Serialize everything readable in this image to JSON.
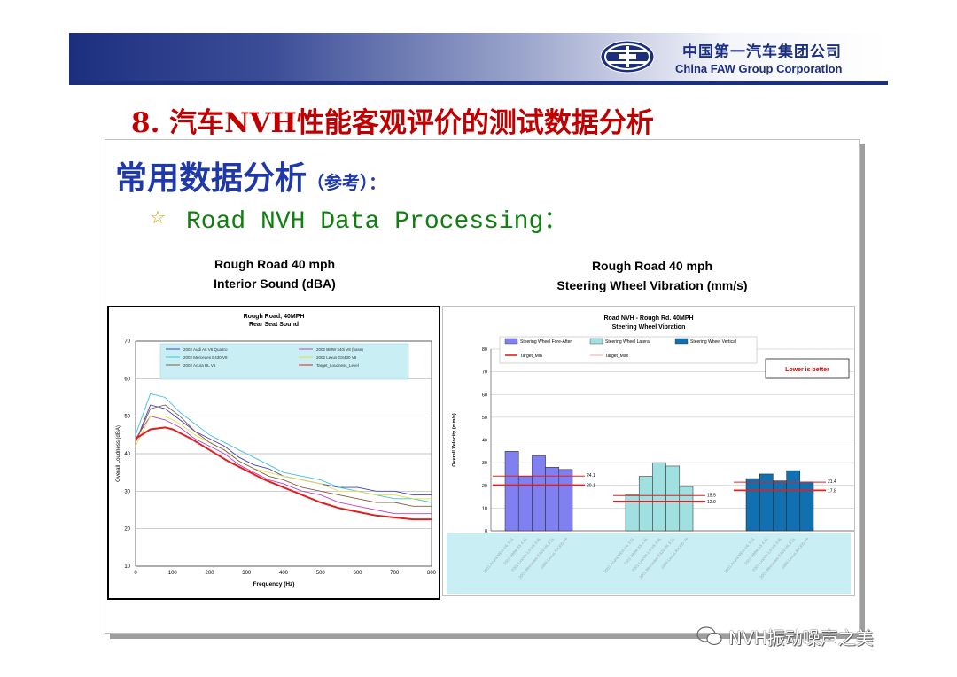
{
  "header": {
    "company_cn": "中国第一汽车集团公司",
    "company_en": "China FAW Group Corporation",
    "banner_color": "#1c2f7f"
  },
  "slide": {
    "title": "8. 汽车NVH性能客观评价的测试数据分析",
    "subtitle": "常用数据分析",
    "subtitle_note": "（参考）：",
    "bullet_icon": "star-icon",
    "bullet": "Road NVH Data Processing："
  },
  "chart_titles": {
    "left_line1": "Rough Road 40 mph",
    "left_line2": "Interior Sound (dBA)",
    "right_line1": "Rough Road 40 mph",
    "right_line2": "Steering Wheel Vibration (mm/s)"
  },
  "watermark": "NVH振动噪声之美",
  "chart_data": [
    {
      "type": "line",
      "title": "Rough Road, 40MPH",
      "subtitle": "Rear Seat Sound",
      "xlabel": "Frequency (Hz)",
      "ylabel": "Overall Loudness (dBA)",
      "xlim": [
        0,
        800
      ],
      "ylim": [
        10,
        70
      ],
      "x_ticks": [
        0,
        100,
        200,
        300,
        400,
        500,
        600,
        700,
        800
      ],
      "y_ticks": [
        10,
        20,
        30,
        40,
        50,
        60,
        70
      ],
      "grid": true,
      "legend_position": "top",
      "series": [
        {
          "name": "2002 Audi A6 V6 Quattro",
          "color": "#4040c0",
          "x": [
            0,
            40,
            80,
            120,
            160,
            200,
            240,
            280,
            320,
            360,
            400,
            450,
            500,
            550,
            600,
            650,
            700,
            750,
            800
          ],
          "y": [
            43,
            53,
            52,
            49,
            46,
            44,
            42,
            39,
            37,
            36,
            34,
            33,
            32,
            31,
            31,
            30,
            30,
            29,
            29
          ]
        },
        {
          "name": "2002 BMW 540i V8 (base)",
          "color": "#c040c0",
          "x": [
            0,
            40,
            80,
            120,
            160,
            200,
            240,
            280,
            320,
            360,
            400,
            450,
            500,
            550,
            600,
            650,
            700,
            750,
            800
          ],
          "y": [
            44,
            50,
            49,
            47,
            44,
            42,
            40,
            37,
            35,
            33,
            32,
            30,
            29,
            27,
            26,
            25,
            24,
            24,
            24
          ]
        },
        {
          "name": "2002 Mercedes E430 V8",
          "color": "#40c0e0",
          "x": [
            0,
            40,
            80,
            120,
            160,
            200,
            240,
            280,
            320,
            360,
            400,
            450,
            500,
            550,
            600,
            650,
            700,
            750,
            800
          ],
          "y": [
            45,
            56,
            55,
            51,
            48,
            45,
            43,
            41,
            39,
            37,
            35,
            34,
            33,
            31,
            30,
            29,
            28,
            28,
            27
          ]
        },
        {
          "name": "2002 Lexus GS430 V8",
          "color": "#e0e040",
          "x": [
            0,
            40,
            80,
            120,
            160,
            200,
            240,
            280,
            320,
            360,
            400,
            450,
            500,
            550,
            600,
            650,
            700,
            750,
            800
          ],
          "y": [
            42,
            50,
            50,
            48,
            45,
            43,
            41,
            38,
            36,
            35,
            34,
            33,
            32,
            30,
            30,
            29,
            29,
            28,
            28
          ]
        },
        {
          "name": "2002 Acura RL V6",
          "color": "#806040",
          "x": [
            0,
            40,
            80,
            120,
            160,
            200,
            240,
            280,
            320,
            360,
            400,
            450,
            500,
            550,
            600,
            650,
            700,
            750,
            800
          ],
          "y": [
            43,
            52,
            53,
            50,
            46,
            43,
            41,
            38,
            36,
            34,
            33,
            31,
            30,
            29,
            28,
            27,
            27,
            26,
            26
          ]
        },
        {
          "name": "Target_Loudness_Level",
          "color": "#e02020",
          "x": [
            0,
            40,
            80,
            100,
            150,
            200,
            250,
            300,
            350,
            400,
            450,
            500,
            550,
            600,
            650,
            700,
            750,
            800
          ],
          "y": [
            44,
            46.5,
            47,
            46.5,
            44,
            41,
            38,
            35.5,
            33,
            31,
            29,
            27,
            25.5,
            24.5,
            23.5,
            23,
            22.5,
            22.5
          ]
        }
      ]
    },
    {
      "type": "bar",
      "title": "Road NVH - Rough Rd. 40MPH",
      "subtitle": "Steering Wheel Vibration",
      "ylabel": "Overall Velocity (mm/s)",
      "ylim": [
        0,
        80
      ],
      "y_ticks": [
        0,
        10,
        20,
        30,
        40,
        50,
        60,
        70,
        80
      ],
      "grid": true,
      "legend_position": "top",
      "note": "Lower is better",
      "categories": [
        "2001 Acura MDX V6 3.5L",
        "2001 BMW X5 4.4L",
        "2001 Lincoln LS V8 3.9L",
        "2001 Mercedes E320 V6 3.2L",
        "1999 Lexus RX300 V6"
      ],
      "series": [
        {
          "name": "Steering Wheel Fore-After",
          "color": "#8080f0",
          "values": [
            35,
            24,
            33,
            28,
            27
          ],
          "target_max": 24.1,
          "target_min": 20.1
        },
        {
          "name": "Steering Wheel Lateral",
          "color": "#a0e0e0",
          "values": [
            16,
            24,
            30,
            28.5,
            19.5
          ],
          "target_max": 15.5,
          "target_min": 12.9
        },
        {
          "name": "Steering Wheel Vertical",
          "color": "#1070b0",
          "values": [
            23,
            25,
            22,
            26.5,
            21.5
          ],
          "target_max": 21.4,
          "target_min": 17.8
        }
      ],
      "target_series": [
        {
          "name": "Target_Min",
          "color": "#e02020"
        },
        {
          "name": "Target_Max",
          "color": "#f09090"
        }
      ]
    }
  ]
}
